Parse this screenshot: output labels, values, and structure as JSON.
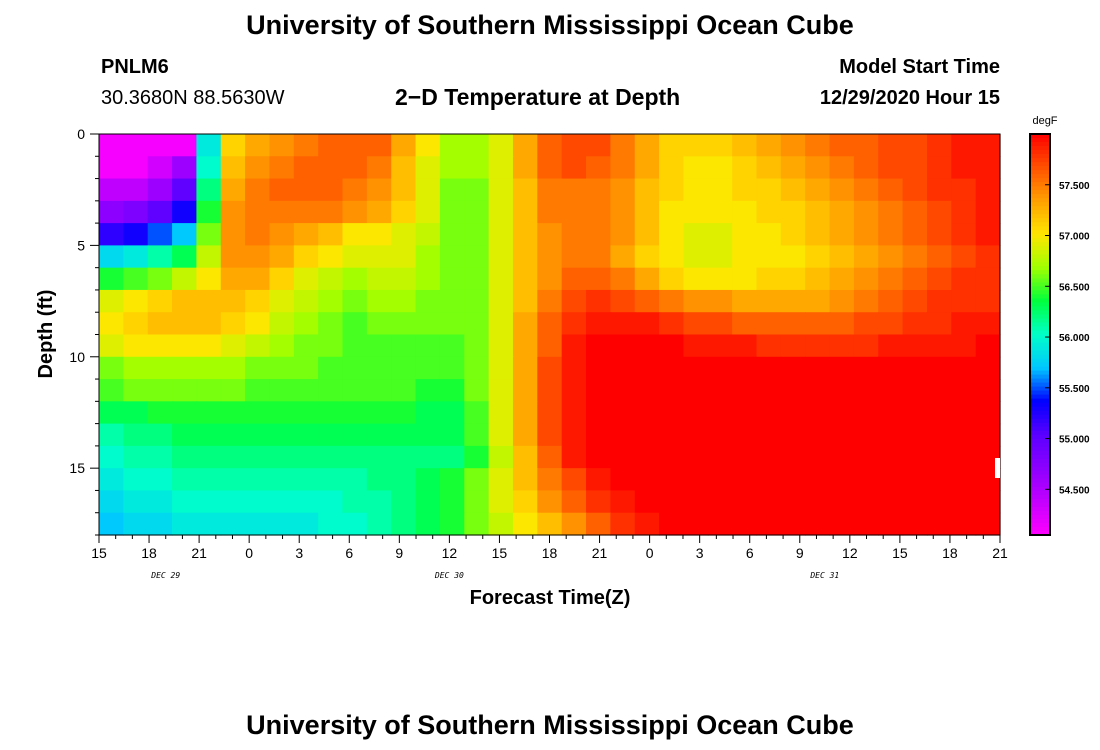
{
  "page": {
    "title_top": "University of Southern Mississippi Ocean Cube",
    "title_bottom": "University of Southern Mississippi Ocean Cube",
    "station": "PNLM6",
    "location": "30.3680N 88.5630W",
    "model_start_label": "Model Start Time",
    "model_start_value": "12/29/2020 Hour 15"
  },
  "chart_data": {
    "type": "heatmap",
    "title": "2−D Temperature at Depth",
    "xlabel": "Forecast Time(Z)",
    "ylabel": "Depth (ft)",
    "x_ticks": [
      "15",
      "18",
      "21",
      "0",
      "3",
      "6",
      "9",
      "12",
      "15",
      "18",
      "21",
      "0",
      "3",
      "6",
      "9",
      "12",
      "15",
      "18",
      "21"
    ],
    "x_start_hour": 15,
    "x_end_hour": 69,
    "date_labels": [
      {
        "label": "DEC 29",
        "hour": 19
      },
      {
        "label": "DEC 30",
        "hour": 36
      },
      {
        "label": "DEC 31",
        "hour": 58.5
      }
    ],
    "y_ticks": [
      "0",
      "5",
      "10",
      "15"
    ],
    "y_tick_values": [
      0,
      5,
      10,
      15
    ],
    "ylim": [
      0,
      18
    ],
    "colorbar": {
      "unit": "degF",
      "labels": [
        "57.500",
        "57.000",
        "56.500",
        "56.000",
        "55.500",
        "55.000",
        "54.500"
      ],
      "label_values": [
        57.5,
        57.0,
        56.5,
        56.0,
        55.5,
        55.0,
        54.5
      ],
      "min": 54.05,
      "max": 58.0,
      "colors": [
        "#ff00ff",
        "#c400ff",
        "#8c00ff",
        "#5a00ff",
        "#0000ff",
        "#00c8ff",
        "#00ffc8",
        "#00ff3c",
        "#a0ff00",
        "#ffe600",
        "#ffa000",
        "#ff5000",
        "#ff0000"
      ]
    },
    "grid_columns": 37,
    "grid_rows": 18,
    "temperature_degF": [
      [
        54.1,
        54.1,
        54.1,
        54.1,
        55.9,
        57.1,
        57.3,
        57.4,
        57.5,
        57.6,
        57.6,
        57.6,
        57.3,
        57.0,
        56.7,
        56.7,
        56.9,
        57.3,
        57.6,
        57.7,
        57.7,
        57.5,
        57.3,
        57.1,
        57.1,
        57.1,
        57.2,
        57.3,
        57.4,
        57.5,
        57.6,
        57.6,
        57.7,
        57.7,
        57.8,
        57.9,
        57.9
      ],
      [
        54.1,
        54.1,
        54.3,
        54.6,
        56.0,
        57.2,
        57.4,
        57.5,
        57.6,
        57.6,
        57.6,
        57.5,
        57.2,
        56.9,
        56.7,
        56.7,
        56.9,
        57.3,
        57.6,
        57.7,
        57.6,
        57.5,
        57.3,
        57.1,
        57.0,
        57.0,
        57.1,
        57.2,
        57.3,
        57.4,
        57.5,
        57.6,
        57.7,
        57.7,
        57.8,
        57.9,
        57.9
      ],
      [
        54.4,
        54.4,
        54.6,
        55.0,
        56.2,
        57.3,
        57.5,
        57.6,
        57.6,
        57.6,
        57.5,
        57.4,
        57.2,
        56.9,
        56.6,
        56.6,
        56.9,
        57.2,
        57.5,
        57.5,
        57.5,
        57.4,
        57.2,
        57.1,
        57.0,
        57.0,
        57.1,
        57.1,
        57.2,
        57.3,
        57.4,
        57.5,
        57.6,
        57.7,
        57.8,
        57.8,
        57.9
      ],
      [
        54.7,
        54.8,
        55.0,
        55.3,
        56.4,
        57.4,
        57.5,
        57.5,
        57.5,
        57.5,
        57.4,
        57.3,
        57.1,
        56.9,
        56.6,
        56.6,
        56.9,
        57.2,
        57.5,
        57.5,
        57.5,
        57.4,
        57.2,
        57.0,
        57.0,
        57.0,
        57.0,
        57.1,
        57.1,
        57.2,
        57.3,
        57.4,
        57.5,
        57.6,
        57.7,
        57.8,
        57.9
      ],
      [
        55.2,
        55.3,
        55.5,
        55.7,
        56.6,
        57.4,
        57.5,
        57.4,
        57.3,
        57.2,
        57.0,
        57.0,
        56.9,
        56.8,
        56.6,
        56.6,
        56.9,
        57.2,
        57.4,
        57.5,
        57.5,
        57.4,
        57.2,
        57.0,
        56.9,
        56.9,
        57.0,
        57.0,
        57.1,
        57.2,
        57.3,
        57.4,
        57.5,
        57.6,
        57.7,
        57.8,
        57.9
      ],
      [
        55.8,
        55.9,
        56.1,
        56.3,
        56.8,
        57.4,
        57.4,
        57.3,
        57.1,
        57.0,
        56.9,
        56.9,
        56.9,
        56.7,
        56.6,
        56.6,
        56.9,
        57.2,
        57.4,
        57.5,
        57.5,
        57.3,
        57.1,
        57.0,
        56.9,
        56.9,
        57.0,
        57.0,
        57.0,
        57.1,
        57.2,
        57.3,
        57.4,
        57.5,
        57.6,
        57.7,
        57.8
      ],
      [
        56.4,
        56.5,
        56.6,
        56.8,
        57.0,
        57.3,
        57.3,
        57.1,
        56.9,
        56.8,
        56.7,
        56.8,
        56.8,
        56.7,
        56.6,
        56.6,
        56.9,
        57.2,
        57.4,
        57.6,
        57.6,
        57.5,
        57.3,
        57.1,
        57.0,
        57.0,
        57.0,
        57.1,
        57.1,
        57.2,
        57.3,
        57.4,
        57.5,
        57.6,
        57.7,
        57.8,
        57.8
      ],
      [
        56.9,
        57.0,
        57.1,
        57.2,
        57.2,
        57.2,
        57.1,
        56.9,
        56.8,
        56.7,
        56.6,
        56.7,
        56.7,
        56.6,
        56.6,
        56.6,
        56.9,
        57.2,
        57.5,
        57.7,
        57.8,
        57.7,
        57.6,
        57.5,
        57.4,
        57.4,
        57.3,
        57.3,
        57.3,
        57.3,
        57.4,
        57.5,
        57.6,
        57.7,
        57.8,
        57.8,
        57.8
      ],
      [
        57.0,
        57.1,
        57.2,
        57.2,
        57.2,
        57.1,
        57.0,
        56.8,
        56.7,
        56.6,
        56.5,
        56.6,
        56.6,
        56.6,
        56.6,
        56.6,
        56.9,
        57.3,
        57.6,
        57.8,
        57.9,
        57.9,
        57.9,
        57.8,
        57.7,
        57.7,
        57.6,
        57.6,
        57.6,
        57.6,
        57.6,
        57.7,
        57.7,
        57.8,
        57.8,
        57.9,
        57.9
      ],
      [
        56.9,
        57.0,
        57.0,
        57.0,
        57.0,
        56.9,
        56.8,
        56.7,
        56.6,
        56.6,
        56.5,
        56.5,
        56.5,
        56.5,
        56.5,
        56.6,
        56.9,
        57.3,
        57.6,
        57.9,
        58.0,
        58.0,
        58.0,
        58.0,
        57.9,
        57.9,
        57.9,
        57.8,
        57.8,
        57.8,
        57.8,
        57.8,
        57.9,
        57.9,
        57.9,
        57.9,
        58.0
      ],
      [
        56.6,
        56.7,
        56.7,
        56.7,
        56.7,
        56.7,
        56.6,
        56.6,
        56.6,
        56.5,
        56.5,
        56.5,
        56.5,
        56.5,
        56.5,
        56.6,
        56.9,
        57.3,
        57.7,
        57.9,
        58.0,
        58.0,
        58.0,
        58.0,
        58.0,
        58.0,
        58.0,
        58.0,
        58.0,
        58.0,
        58.0,
        58.0,
        58.0,
        58.0,
        58.0,
        58.0,
        58.0
      ],
      [
        56.5,
        56.6,
        56.6,
        56.6,
        56.6,
        56.6,
        56.5,
        56.5,
        56.5,
        56.5,
        56.5,
        56.5,
        56.5,
        56.4,
        56.4,
        56.6,
        56.9,
        57.3,
        57.7,
        57.9,
        58.0,
        58.0,
        58.0,
        58.0,
        58.0,
        58.0,
        58.0,
        58.0,
        58.0,
        58.0,
        58.0,
        58.0,
        58.0,
        58.0,
        58.0,
        58.0,
        58.0
      ],
      [
        56.3,
        56.3,
        56.4,
        56.4,
        56.4,
        56.4,
        56.4,
        56.4,
        56.4,
        56.4,
        56.4,
        56.4,
        56.4,
        56.3,
        56.3,
        56.5,
        56.9,
        57.3,
        57.7,
        57.9,
        58.0,
        58.0,
        58.0,
        58.0,
        58.0,
        58.0,
        58.0,
        58.0,
        58.0,
        58.0,
        58.0,
        58.0,
        58.0,
        58.0,
        58.0,
        58.0,
        58.0
      ],
      [
        56.1,
        56.2,
        56.2,
        56.3,
        56.3,
        56.3,
        56.3,
        56.3,
        56.3,
        56.3,
        56.3,
        56.3,
        56.3,
        56.3,
        56.3,
        56.5,
        56.9,
        57.3,
        57.7,
        57.9,
        58.0,
        58.0,
        58.0,
        58.0,
        58.0,
        58.0,
        58.0,
        58.0,
        58.0,
        58.0,
        58.0,
        58.0,
        58.0,
        58.0,
        58.0,
        58.0,
        58.0
      ],
      [
        56.0,
        56.1,
        56.1,
        56.2,
        56.2,
        56.2,
        56.2,
        56.2,
        56.2,
        56.2,
        56.2,
        56.2,
        56.2,
        56.2,
        56.2,
        56.4,
        56.8,
        57.2,
        57.6,
        57.9,
        58.0,
        58.0,
        58.0,
        58.0,
        58.0,
        58.0,
        58.0,
        58.0,
        58.0,
        58.0,
        58.0,
        58.0,
        58.0,
        58.0,
        58.0,
        58.0,
        58.0
      ],
      [
        55.9,
        56.0,
        56.0,
        56.1,
        56.1,
        56.1,
        56.1,
        56.1,
        56.1,
        56.1,
        56.1,
        56.2,
        56.2,
        56.3,
        56.4,
        56.6,
        56.9,
        57.2,
        57.5,
        57.7,
        57.9,
        58.0,
        58.0,
        58.0,
        58.0,
        58.0,
        58.0,
        58.0,
        58.0,
        58.0,
        58.0,
        58.0,
        58.0,
        58.0,
        58.0,
        58.0,
        58.0
      ],
      [
        55.8,
        55.9,
        55.9,
        56.0,
        56.0,
        56.0,
        56.0,
        56.0,
        56.0,
        56.0,
        56.1,
        56.1,
        56.2,
        56.3,
        56.4,
        56.6,
        56.9,
        57.1,
        57.4,
        57.6,
        57.8,
        57.9,
        58.0,
        58.0,
        58.0,
        58.0,
        58.0,
        58.0,
        58.0,
        58.0,
        58.0,
        58.0,
        58.0,
        58.0,
        58.0,
        58.0,
        58.0
      ],
      [
        55.7,
        55.8,
        55.8,
        55.9,
        55.9,
        55.9,
        55.9,
        55.9,
        55.9,
        56.0,
        56.0,
        56.1,
        56.2,
        56.3,
        56.4,
        56.6,
        56.8,
        57.0,
        57.2,
        57.4,
        57.6,
        57.8,
        57.9,
        58.0,
        58.0,
        58.0,
        58.0,
        58.0,
        58.0,
        58.0,
        58.0,
        58.0,
        58.0,
        58.0,
        58.0,
        58.0,
        58.0
      ]
    ]
  }
}
